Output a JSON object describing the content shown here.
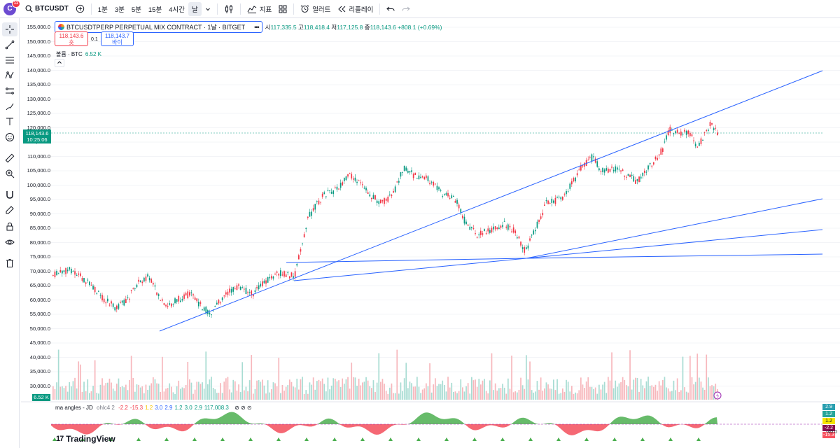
{
  "topbar": {
    "avatar_letter": "C",
    "notif_count": "11",
    "symbol": "BTCUSDT",
    "intervals": [
      "1분",
      "3분",
      "5분",
      "15분",
      "4시간",
      "날"
    ],
    "active_interval": "날",
    "indicators_label": "지표",
    "alerts_label": "얼러트",
    "replay_label": "리플레이"
  },
  "legend": {
    "title": "BTCUSDTPERP PERPETUAL MIX CONTRACT · 1날 · BITGET",
    "dots": "•••",
    "open_prefix": "시",
    "open": "117,335.5",
    "high_prefix": "고",
    "high": "118,418.4",
    "low_prefix": "저",
    "low": "117,125.8",
    "close_prefix": "종",
    "close": "118,143.6",
    "change": "+808.1 (+0.69%)",
    "sell_price": "118,143.6",
    "sell_label": "숏",
    "spread": "0.1",
    "buy_price": "118,143.7",
    "buy_label": "바이",
    "volume_label": "볼륨 · BTC",
    "volume_value": "6.52 K"
  },
  "price_axis": {
    "labels": [
      "155,000.0",
      "150,000.0",
      "145,000.0",
      "140,000.0",
      "135,000.0",
      "130,000.0",
      "125,000.0",
      "120,000.0",
      "115,000.0",
      "110,000.0",
      "105,000.0",
      "100,000.0",
      "95,000.0",
      "90,000.0",
      "85,000.0",
      "80,000.0",
      "75,000.0",
      "70,000.0",
      "65,000.0",
      "60,000.0",
      "55,000.0",
      "50,000.0",
      "45,000.0",
      "40,000.0",
      "35,000.0",
      "30,000.0"
    ],
    "last_price": "118,143.6",
    "countdown": "10:25:06",
    "volume_tag": "6.52 K"
  },
  "indicator": {
    "name": "ma angles - JD",
    "params": "ohlc4 2",
    "values": [
      "-2.2",
      "-15.3",
      "1.2",
      "3.0",
      "2.9",
      "1.2",
      "3.0",
      "2.9",
      "117,008.3"
    ],
    "value_colors": [
      "#f23645",
      "#f23645",
      "#f5c400",
      "#2962ff",
      "#2962ff",
      "#089981",
      "#089981",
      "#089981",
      "#089981"
    ],
    "axis_tags": [
      {
        "text": "2.9",
        "bg": "#2a9fb0",
        "fg": "#ffffff"
      },
      {
        "text": "1.2",
        "bg": "#26a69a",
        "fg": "#ffffff"
      },
      {
        "text": "1.2",
        "bg": "#f5e400",
        "fg": "#131722"
      },
      {
        "text": "-2.2",
        "bg": "#880e4f",
        "fg": "#ffffff"
      },
      {
        "text": "-15.3",
        "bg": "#f7525f",
        "fg": "#ffffff"
      }
    ],
    "axis_bottom": "-40.0"
  },
  "branding": "TradingView",
  "colors": {
    "up": "#089981",
    "down": "#f23645",
    "trendline": "#2962ff",
    "volume_up": "#a8dcd3",
    "volume_down": "#f7b7bc"
  }
}
